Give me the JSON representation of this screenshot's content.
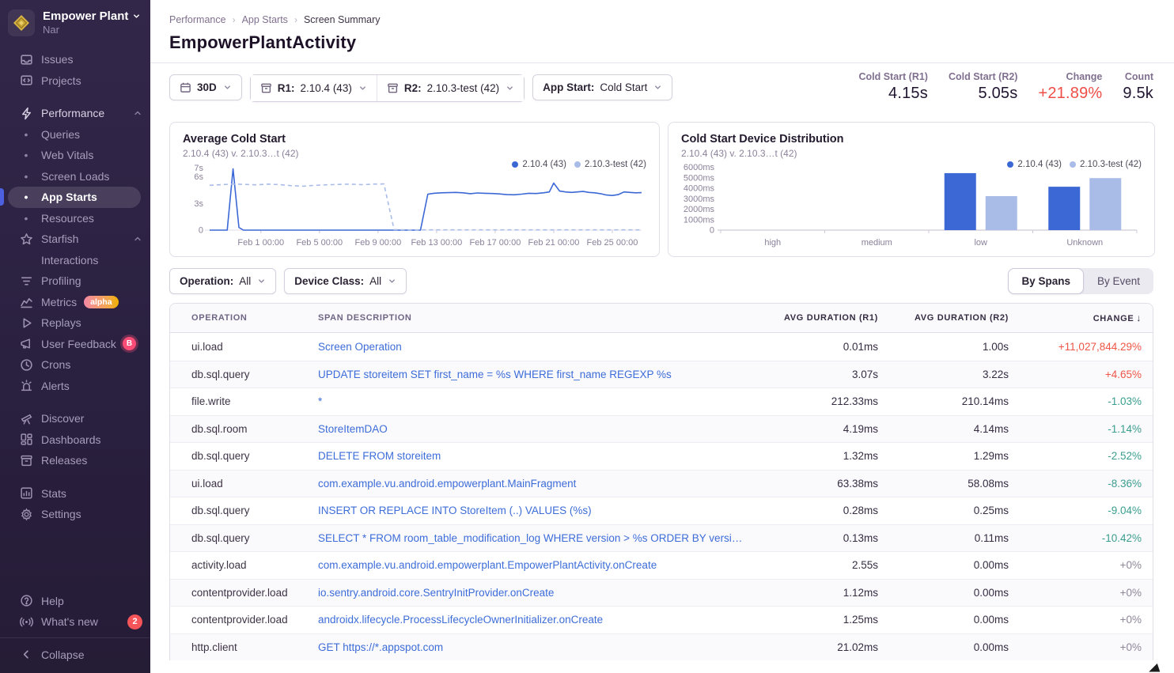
{
  "sidebar": {
    "org": {
      "name": "Empower Plant",
      "subtitle": "Nar"
    },
    "sections": [
      {
        "items": [
          {
            "label": "Issues",
            "icon": "issues-icon"
          },
          {
            "label": "Projects",
            "icon": "projects-icon"
          }
        ]
      },
      {
        "items": [
          {
            "label": "Performance",
            "icon": "performance-icon",
            "chevron": "up",
            "emphasis": true
          },
          {
            "label": "Queries",
            "child": true,
            "bullet": true
          },
          {
            "label": "Web Vitals",
            "child": true,
            "bullet": true
          },
          {
            "label": "Screen Loads",
            "child": true,
            "bullet": true
          },
          {
            "label": "App Starts",
            "child": true,
            "bullet": true,
            "active": true
          },
          {
            "label": "Resources",
            "child": true,
            "bullet": true
          },
          {
            "label": "Starfish",
            "icon": "starfish-icon",
            "chevron": "up"
          },
          {
            "label": "Interactions",
            "child": true,
            "bullet": false
          },
          {
            "label": "Profiling",
            "icon": "profiling-icon"
          },
          {
            "label": "Metrics",
            "icon": "metrics-icon",
            "badge": {
              "type": "alpha",
              "text": "alpha"
            }
          },
          {
            "label": "Replays",
            "icon": "replays-icon"
          },
          {
            "label": "User Feedback",
            "icon": "user-feedback-icon",
            "badge": {
              "type": "letter",
              "text": "B"
            }
          },
          {
            "label": "Crons",
            "icon": "crons-icon"
          },
          {
            "label": "Alerts",
            "icon": "alerts-icon"
          }
        ]
      },
      {
        "items": [
          {
            "label": "Discover",
            "icon": "discover-icon"
          },
          {
            "label": "Dashboards",
            "icon": "dashboards-icon"
          },
          {
            "label": "Releases",
            "icon": "releases-icon"
          }
        ]
      },
      {
        "items": [
          {
            "label": "Stats",
            "icon": "stats-icon"
          },
          {
            "label": "Settings",
            "icon": "settings-icon"
          }
        ]
      }
    ],
    "footer": [
      {
        "label": "Help",
        "icon": "help-icon"
      },
      {
        "label": "What's new",
        "icon": "whats-new-icon",
        "badge": {
          "type": "count",
          "text": "2"
        }
      }
    ],
    "collapse": {
      "label": "Collapse",
      "icon": "collapse-icon"
    }
  },
  "breadcrumb": {
    "items": [
      "Performance",
      "App Starts",
      "Screen Summary"
    ]
  },
  "page": {
    "title": "EmpowerPlantActivity"
  },
  "toolbar": {
    "date_range": {
      "label": "30D"
    },
    "release1": {
      "prefix": "R1:",
      "value": "2.10.4 (43)"
    },
    "release2": {
      "prefix": "R2:",
      "value": "2.10.3-test (42)"
    },
    "app_start": {
      "prefix": "App Start:",
      "value": "Cold Start"
    }
  },
  "summary_stats": [
    {
      "label": "Cold Start (R1)",
      "value": "4.15s",
      "color": "#201430"
    },
    {
      "label": "Cold Start (R2)",
      "value": "5.05s",
      "color": "#201430"
    },
    {
      "label": "Change",
      "value": "+21.89%",
      "color": "#ef4e46"
    },
    {
      "label": "Count",
      "value": "9.5k",
      "color": "#201430"
    }
  ],
  "filters": {
    "operation": {
      "prefix": "Operation:",
      "value": "All"
    },
    "device_class": {
      "prefix": "Device Class:",
      "value": "All"
    }
  },
  "view_toggle": {
    "options": [
      "By Spans",
      "By Event"
    ],
    "selected": 0
  },
  "chart_data": [
    {
      "type": "line",
      "title": "Average Cold Start",
      "subtitle": "2.10.4 (43) v. 2.10.3…t (42)",
      "legend": [
        {
          "name": "2.10.4 (43)",
          "color": "#3c68d6"
        },
        {
          "name": "2.10.3-test (42)",
          "color": "#a9bce8"
        }
      ],
      "x_domain_days": [
        0,
        29.5
      ],
      "x_ticks": [
        {
          "pos": 3.5,
          "label": "Feb 1 00:00"
        },
        {
          "pos": 7.5,
          "label": "Feb 5 00:00"
        },
        {
          "pos": 11.5,
          "label": "Feb 9 00:00"
        },
        {
          "pos": 15.5,
          "label": "Feb 13 00:00"
        },
        {
          "pos": 19.5,
          "label": "Feb 17 00:00"
        },
        {
          "pos": 23.5,
          "label": "Feb 21 00:00"
        },
        {
          "pos": 27.5,
          "label": "Feb 25 00:00"
        }
      ],
      "ylim": [
        0,
        7.3
      ],
      "y_ticks": [
        {
          "v": 7,
          "label": "7s"
        },
        {
          "v": 6,
          "label": "6s"
        },
        {
          "v": 3,
          "label": "3s"
        },
        {
          "v": 0,
          "label": "0"
        }
      ],
      "series": [
        {
          "name": "2.10.4 (43)",
          "style": "solid",
          "color": "#3c68d6",
          "points": [
            [
              0,
              0
            ],
            [
              1.2,
              0
            ],
            [
              1.6,
              6.9
            ],
            [
              2.0,
              0.3
            ],
            [
              2.3,
              0
            ],
            [
              5,
              0
            ],
            [
              8,
              0
            ],
            [
              11,
              0
            ],
            [
              12.5,
              0
            ],
            [
              13.5,
              0
            ],
            [
              14.4,
              0
            ],
            [
              14.9,
              4.05
            ],
            [
              15.3,
              4.15
            ],
            [
              15.8,
              4.2
            ],
            [
              16.3,
              4.22
            ],
            [
              16.8,
              4.25
            ],
            [
              17.3,
              4.2
            ],
            [
              17.8,
              4.1
            ],
            [
              18.3,
              4.18
            ],
            [
              18.8,
              4.15
            ],
            [
              19.3,
              4.12
            ],
            [
              19.8,
              4.08
            ],
            [
              20.3,
              4.0
            ],
            [
              20.8,
              3.98
            ],
            [
              21.3,
              4.05
            ],
            [
              21.8,
              4.15
            ],
            [
              22.3,
              4.12
            ],
            [
              22.8,
              4.2
            ],
            [
              23.2,
              4.3
            ],
            [
              23.5,
              5.3
            ],
            [
              23.9,
              4.4
            ],
            [
              24.3,
              4.3
            ],
            [
              24.7,
              4.25
            ],
            [
              25.1,
              4.3
            ],
            [
              25.5,
              4.35
            ],
            [
              25.9,
              4.25
            ],
            [
              26.3,
              4.2
            ],
            [
              26.7,
              4.1
            ],
            [
              27.1,
              3.95
            ],
            [
              27.5,
              3.9
            ],
            [
              27.9,
              4.0
            ],
            [
              28.3,
              4.3
            ],
            [
              28.7,
              4.25
            ],
            [
              29.1,
              4.2
            ],
            [
              29.5,
              4.22
            ]
          ]
        },
        {
          "name": "2.10.3-test (42)",
          "style": "dashed",
          "color": "#a9bce8",
          "points": [
            [
              0,
              5.05
            ],
            [
              0.8,
              5.12
            ],
            [
              1.6,
              5.18
            ],
            [
              2.4,
              5.15
            ],
            [
              3.2,
              5.1
            ],
            [
              4.0,
              5.18
            ],
            [
              4.8,
              5.12
            ],
            [
              5.6,
              5.0
            ],
            [
              6.4,
              4.95
            ],
            [
              7.2,
              5.05
            ],
            [
              8.0,
              5.1
            ],
            [
              8.8,
              5.15
            ],
            [
              9.6,
              5.18
            ],
            [
              10.4,
              5.12
            ],
            [
              11.2,
              5.18
            ],
            [
              11.9,
              5.2
            ],
            [
              12.6,
              0.05
            ],
            [
              13.5,
              0.03
            ],
            [
              16,
              0.03
            ],
            [
              19,
              0.03
            ],
            [
              22,
              0.03
            ],
            [
              25,
              0.03
            ],
            [
              27,
              0.03
            ],
            [
              29.5,
              0.03
            ]
          ]
        }
      ]
    },
    {
      "type": "bar",
      "title": "Cold Start Device Distribution",
      "subtitle": "2.10.4 (43) v. 2.10.3…t (42)",
      "legend": [
        {
          "name": "2.10.4 (43)",
          "color": "#3c68d6"
        },
        {
          "name": "2.10.3-test (42)",
          "color": "#a9bce8"
        }
      ],
      "categories": [
        "high",
        "medium",
        "low",
        "Unknown"
      ],
      "ylim": [
        0,
        6200
      ],
      "y_ticks": [
        {
          "v": 6000,
          "label": "6000ms"
        },
        {
          "v": 5000,
          "label": "5000ms"
        },
        {
          "v": 4000,
          "label": "4000ms"
        },
        {
          "v": 3000,
          "label": "3000ms"
        },
        {
          "v": 2000,
          "label": "2000ms"
        },
        {
          "v": 1000,
          "label": "1000ms"
        },
        {
          "v": 0,
          "label": "0"
        }
      ],
      "series": [
        {
          "name": "2.10.4 (43)",
          "color": "#3c68d6",
          "values": [
            0,
            0,
            5450,
            4150
          ]
        },
        {
          "name": "2.10.3-test (42)",
          "color": "#a9bce8",
          "values": [
            0,
            0,
            3250,
            4975
          ]
        }
      ]
    }
  ],
  "table": {
    "columns": [
      {
        "label": "OPERATION",
        "align": "left"
      },
      {
        "label": "SPAN DESCRIPTION",
        "align": "left"
      },
      {
        "label": "AVG DURATION (R1)",
        "align": "right"
      },
      {
        "label": "AVG DURATION (R2)",
        "align": "right"
      },
      {
        "label": "CHANGE",
        "align": "right",
        "sort": "desc"
      }
    ],
    "rows": [
      {
        "operation": "ui.load",
        "description": "Screen Operation",
        "r1": "0.01ms",
        "r2": "1.00s",
        "change": "+11,027,844.29%",
        "trend": "bad"
      },
      {
        "operation": "db.sql.query",
        "description": "UPDATE storeitem SET first_name = %s WHERE first_name REGEXP %s",
        "r1": "3.07s",
        "r2": "3.22s",
        "change": "+4.65%",
        "trend": "bad"
      },
      {
        "operation": "file.write",
        "description": "*",
        "r1": "212.33ms",
        "r2": "210.14ms",
        "change": "-1.03%",
        "trend": "good"
      },
      {
        "operation": "db.sql.room",
        "description": "StoreItemDAO",
        "r1": "4.19ms",
        "r2": "4.14ms",
        "change": "-1.14%",
        "trend": "good"
      },
      {
        "operation": "db.sql.query",
        "description": "DELETE FROM storeitem",
        "r1": "1.32ms",
        "r2": "1.29ms",
        "change": "-2.52%",
        "trend": "good"
      },
      {
        "operation": "ui.load",
        "description": "com.example.vu.android.empowerplant.MainFragment",
        "r1": "63.38ms",
        "r2": "58.08ms",
        "change": "-8.36%",
        "trend": "good"
      },
      {
        "operation": "db.sql.query",
        "description": "INSERT OR REPLACE INTO StoreItem (..) VALUES (%s)",
        "r1": "0.28ms",
        "r2": "0.25ms",
        "change": "-9.04%",
        "trend": "good"
      },
      {
        "operation": "db.sql.query",
        "description": "SELECT * FROM room_table_modification_log WHERE version > %s ORDER BY version ASC",
        "r1": "0.13ms",
        "r2": "0.11ms",
        "change": "-10.42%",
        "trend": "good"
      },
      {
        "operation": "activity.load",
        "description": "com.example.vu.android.empowerplant.EmpowerPlantActivity.onCreate",
        "r1": "2.55s",
        "r2": "0.00ms",
        "change": "+0%",
        "trend": "neutral"
      },
      {
        "operation": "contentprovider.load",
        "description": "io.sentry.android.core.SentryInitProvider.onCreate",
        "r1": "1.12ms",
        "r2": "0.00ms",
        "change": "+0%",
        "trend": "neutral"
      },
      {
        "operation": "contentprovider.load",
        "description": "androidx.lifecycle.ProcessLifecycleOwnerInitializer.onCreate",
        "r1": "1.25ms",
        "r2": "0.00ms",
        "change": "+0%",
        "trend": "neutral"
      },
      {
        "operation": "http.client",
        "description": "GET https://*.appspot.com",
        "r1": "21.02ms",
        "r2": "0.00ms",
        "change": "+0%",
        "trend": "neutral"
      }
    ]
  }
}
